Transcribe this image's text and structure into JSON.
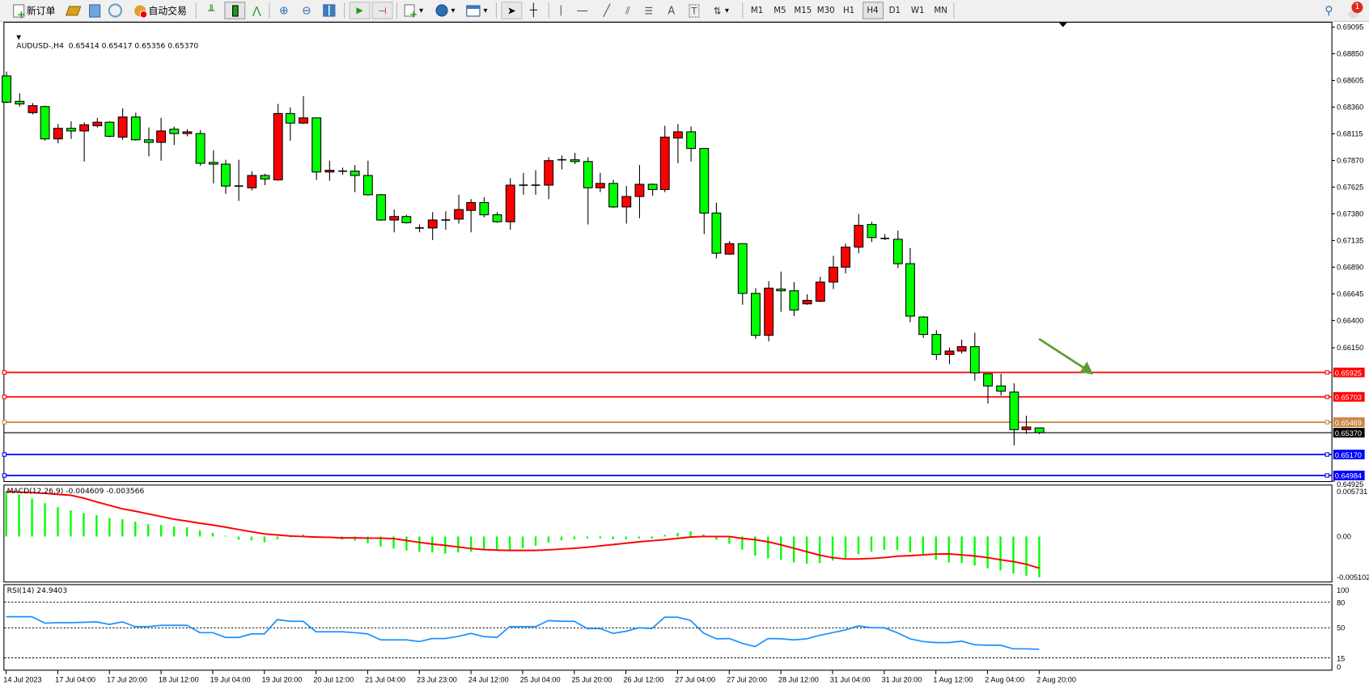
{
  "toolbar": {
    "new_order": "新订单",
    "auto_trading": "自动交易",
    "timeframes": [
      "M1",
      "M5",
      "M15",
      "M30",
      "H1",
      "H4",
      "D1",
      "W1",
      "MN"
    ],
    "active_timeframe": "H4",
    "notification_count": "1"
  },
  "chart": {
    "symbol_info": "AUDUSD-,H4  0.65414 0.65417 0.65356 0.65370",
    "price_axis": [
      "0.69095",
      "0.68850",
      "0.68605",
      "0.68360",
      "0.68115",
      "0.67870",
      "0.67625",
      "0.67380",
      "0.67135",
      "0.66890",
      "0.66645",
      "0.66400",
      "0.66150",
      "0.64925"
    ],
    "horizontal_lines": [
      {
        "price": 0.65925,
        "label": "0.65925",
        "color": "#ff0000"
      },
      {
        "price": 0.65703,
        "label": "0.65703",
        "color": "#ff0000"
      },
      {
        "price": 0.65469,
        "label": "0.65469",
        "color": "#cd853f"
      },
      {
        "price": 0.6517,
        "label": "0.65170",
        "color": "#0000ff"
      },
      {
        "price": 0.64984,
        "label": "0.64984",
        "color": "#0000ff"
      }
    ],
    "current_price": {
      "price": 0.6537,
      "label": "0.65370",
      "color": "#000000"
    },
    "arrow_color": "#5a9e32",
    "colors": {
      "bull": "#ff0000",
      "bear": "#00ff00",
      "outline": "#000000"
    }
  },
  "macd": {
    "info": "MACD(12,26,9) -0.004609 -0.003566",
    "axis": [
      {
        "value": 0.005731,
        "label": "0.005731"
      },
      {
        "value": 0,
        "label": "0.00"
      },
      {
        "value": -0.005102,
        "label": "-0.005102"
      }
    ],
    "colors": {
      "histogram": "#00ff00",
      "signal": "#ff0000"
    }
  },
  "rsi": {
    "info": "RSI(14) 24.9403",
    "axis": [
      "100",
      "80",
      "50",
      "15",
      "0"
    ],
    "levels": [
      80,
      50,
      15
    ],
    "color": "#1e90ff"
  },
  "time_axis": [
    "14 Jul 2023",
    "17 Jul 04:00",
    "17 Jul 20:00",
    "18 Jul 12:00",
    "19 Jul 04:00",
    "19 Jul 20:00",
    "20 Jul 12:00",
    "21 Jul 04:00",
    "23 Jul 23:00",
    "24 Jul 12:00",
    "25 Jul 04:00",
    "25 Jul 20:00",
    "26 Jul 12:00",
    "27 Jul 04:00",
    "27 Jul 20:00",
    "28 Jul 12:00",
    "31 Jul 04:00",
    "31 Jul 20:00",
    "1 Aug 12:00",
    "2 Aug 04:00",
    "2 Aug 20:00"
  ],
  "chart_data": [
    {
      "type": "candlestick",
      "symbol": "AUDUSD-",
      "timeframe": "H4",
      "ylim": [
        0.64925,
        0.69095
      ],
      "ohlc": [
        [
          0.68646,
          0.68686,
          0.68397,
          0.68405
        ],
        [
          0.68413,
          0.68486,
          0.68365,
          0.68389
        ],
        [
          0.68309,
          0.68397,
          0.68293,
          0.68373
        ],
        [
          0.68365,
          0.68373,
          0.68052,
          0.68068
        ],
        [
          0.68068,
          0.68205,
          0.68028,
          0.68165
        ],
        [
          0.68165,
          0.68229,
          0.68068,
          0.68141
        ],
        [
          0.68141,
          0.68221,
          0.6786,
          0.68197
        ],
        [
          0.68189,
          0.68261,
          0.68173,
          0.68221
        ],
        [
          0.68221,
          0.68229,
          0.68084,
          0.68092
        ],
        [
          0.68084,
          0.68349,
          0.6806,
          0.68269
        ],
        [
          0.68269,
          0.68309,
          0.68052,
          0.6806
        ],
        [
          0.6806,
          0.68173,
          0.67908,
          0.68036
        ],
        [
          0.68036,
          0.68261,
          0.67868,
          0.68141
        ],
        [
          0.68157,
          0.68181,
          0.68012,
          0.68117
        ],
        [
          0.68117,
          0.68157,
          0.68092,
          0.68133
        ],
        [
          0.68117,
          0.68149,
          0.6782,
          0.67844
        ],
        [
          0.67852,
          0.67964,
          0.67659,
          0.67836
        ],
        [
          0.67836,
          0.67876,
          0.67563,
          0.67635
        ],
        [
          0.67635,
          0.67876,
          0.67499,
          0.67635
        ],
        [
          0.67619,
          0.67772,
          0.67595,
          0.67732
        ],
        [
          0.67732,
          0.67748,
          0.67643,
          0.677
        ],
        [
          0.67692,
          0.68389,
          0.67684,
          0.68301
        ],
        [
          0.68301,
          0.68357,
          0.68052,
          0.68213
        ],
        [
          0.68213,
          0.68461,
          0.68205,
          0.68261
        ],
        [
          0.68261,
          0.68261,
          0.67692,
          0.67764
        ],
        [
          0.67764,
          0.67868,
          0.67684,
          0.6778
        ],
        [
          0.67772,
          0.67804,
          0.6774,
          0.67772
        ],
        [
          0.67772,
          0.67828,
          0.67579,
          0.67732
        ],
        [
          0.67732,
          0.67868,
          0.67547,
          0.67555
        ],
        [
          0.67555,
          0.67563,
          0.67315,
          0.67323
        ],
        [
          0.67323,
          0.67419,
          0.6721,
          0.67355
        ],
        [
          0.67355,
          0.67371,
          0.6729,
          0.67298
        ],
        [
          0.6725,
          0.67282,
          0.6721,
          0.6725
        ],
        [
          0.6725,
          0.67395,
          0.67138,
          0.67323
        ],
        [
          0.67323,
          0.67403,
          0.67234,
          0.67323
        ],
        [
          0.67331,
          0.67555,
          0.6729,
          0.67419
        ],
        [
          0.67411,
          0.67515,
          0.6721,
          0.67483
        ],
        [
          0.67483,
          0.67531,
          0.67347,
          0.67371
        ],
        [
          0.67371,
          0.67395,
          0.67298,
          0.67307
        ],
        [
          0.67307,
          0.67708,
          0.67234,
          0.67643
        ],
        [
          0.67643,
          0.67756,
          0.67555,
          0.67643
        ],
        [
          0.67643,
          0.6778,
          0.67555,
          0.67643
        ],
        [
          0.67643,
          0.679,
          0.67515,
          0.67868
        ],
        [
          0.67876,
          0.67916,
          0.67788,
          0.67876
        ],
        [
          0.67876,
          0.6794,
          0.67836,
          0.6786
        ],
        [
          0.6786,
          0.679,
          0.67282,
          0.67619
        ],
        [
          0.67619,
          0.67756,
          0.67579,
          0.67659
        ],
        [
          0.67659,
          0.67692,
          0.67435,
          0.67443
        ],
        [
          0.67443,
          0.67635,
          0.6729,
          0.67539
        ],
        [
          0.67539,
          0.67828,
          0.67339,
          0.67651
        ],
        [
          0.67651,
          0.67659,
          0.67547,
          0.67603
        ],
        [
          0.67603,
          0.68189,
          0.67579,
          0.68084
        ],
        [
          0.68076,
          0.68205,
          0.67844,
          0.68133
        ],
        [
          0.68133,
          0.68181,
          0.6786,
          0.6798
        ],
        [
          0.6798,
          0.6798,
          0.67194,
          0.67387
        ],
        [
          0.67387,
          0.67483,
          0.6697,
          0.67018
        ],
        [
          0.6701,
          0.6713,
          0.67002,
          0.67106
        ],
        [
          0.67106,
          0.67106,
          0.66545,
          0.66649
        ],
        [
          0.66649,
          0.66697,
          0.66232,
          0.66264
        ],
        [
          0.66264,
          0.66761,
          0.66208,
          0.66697
        ],
        [
          0.66689,
          0.66849,
          0.6648,
          0.66673
        ],
        [
          0.66673,
          0.66753,
          0.6644,
          0.66497
        ],
        [
          0.66553,
          0.66641,
          0.66545,
          0.66585
        ],
        [
          0.66577,
          0.66801,
          0.66569,
          0.66753
        ],
        [
          0.66753,
          0.66994,
          0.66689,
          0.6689
        ],
        [
          0.6689,
          0.67106,
          0.66833,
          0.67074
        ],
        [
          0.67074,
          0.67379,
          0.67018,
          0.67274
        ],
        [
          0.67282,
          0.67307,
          0.67122,
          0.67162
        ],
        [
          0.67154,
          0.67194,
          0.67138,
          0.67154
        ],
        [
          0.67146,
          0.67226,
          0.66882,
          0.66922
        ],
        [
          0.66922,
          0.67066,
          0.66384,
          0.6644
        ],
        [
          0.66432,
          0.6644,
          0.6624,
          0.66272
        ],
        [
          0.66272,
          0.66312,
          0.66039,
          0.66088
        ],
        [
          0.66088,
          0.66152,
          0.65999,
          0.6612
        ],
        [
          0.6612,
          0.66224,
          0.66096,
          0.6616
        ],
        [
          0.6616,
          0.66288,
          0.65847,
          0.65919
        ],
        [
          0.65911,
          0.65911,
          0.65638,
          0.65799
        ],
        [
          0.65799,
          0.65911,
          0.65711,
          0.65751
        ],
        [
          0.65743,
          0.65823,
          0.65253,
          0.65398
        ],
        [
          0.65398,
          0.65526,
          0.65358,
          0.65422
        ],
        [
          0.65414,
          0.65417,
          0.65356,
          0.6537
        ]
      ]
    },
    {
      "type": "bar",
      "indicator": "MACD(12,26,9)",
      "ylim": [
        -0.0052,
        0.00578
      ],
      "histogram": [
        0.00508,
        0.00477,
        0.00432,
        0.00378,
        0.00332,
        0.00296,
        0.00266,
        0.00242,
        0.00211,
        0.00196,
        0.00169,
        0.00139,
        0.0013,
        0.00115,
        0.00103,
        0.00069,
        0.00042,
        9e-05,
        -0.00036,
        -0.00045,
        -0.00066,
        -0.0003,
        0.0,
        0.00024,
        2e-05,
        1e-05,
        -0.00036,
        -0.00045,
        -0.00076,
        -0.00112,
        -0.00136,
        -0.00157,
        -0.00172,
        -0.00181,
        -0.00193,
        -0.00181,
        -0.00172,
        -0.00157,
        -0.00157,
        -0.00151,
        -0.00133,
        -0.00103,
        -0.00066,
        -0.00042,
        -0.0003,
        -0.00021,
        -0.00021,
        -0.0003,
        -0.0003,
        -0.00021,
        -0.00021,
        0.00018,
        0.00042,
        0.0006,
        0.00024,
        -0.00036,
        -0.00082,
        -0.00148,
        -0.00217,
        -0.00248,
        -0.00263,
        -0.00293,
        -0.00308,
        -0.00302,
        -0.00272,
        -0.00242,
        -0.00202,
        -0.00172,
        -0.00151,
        -0.00151,
        -0.00181,
        -0.00217,
        -0.00263,
        -0.00293,
        -0.00302,
        -0.00329,
        -0.00362,
        -0.00384,
        -0.0042,
        -0.00444,
        -0.004609
      ],
      "signal": [
        0.00507,
        0.00504,
        0.00498,
        0.00489,
        0.00477,
        0.00468,
        0.00435,
        0.00393,
        0.00353,
        0.00314,
        0.00287,
        0.00257,
        0.00227,
        0.00196,
        0.00175,
        0.00151,
        0.0013,
        0.00106,
        0.00079,
        0.00054,
        0.0003,
        0.00018,
        6e-05,
        0.0,
        -6e-05,
        -9e-05,
        -0.00015,
        -0.00015,
        -0.00018,
        -0.00018,
        -0.00024,
        -0.00045,
        -0.00066,
        -0.00085,
        -0.001,
        -0.00118,
        -0.00136,
        -0.00148,
        -0.00154,
        -0.00157,
        -0.00157,
        -0.00157,
        -0.00151,
        -0.00142,
        -0.00133,
        -0.00121,
        -0.00106,
        -0.00091,
        -0.00076,
        -0.0006,
        -0.00048,
        -0.00036,
        -0.00021,
        -6e-05,
        0.0,
        0.0,
        0.0,
        -0.00021,
        -0.00036,
        -0.0006,
        -0.00094,
        -0.00133,
        -0.00172,
        -0.00211,
        -0.00239,
        -0.00254,
        -0.00254,
        -0.00248,
        -0.00239,
        -0.00223,
        -0.00217,
        -0.00208,
        -0.00199,
        -0.00196,
        -0.00208,
        -0.0022,
        -0.00239,
        -0.00263,
        -0.00284,
        -0.00314,
        -0.003566
      ]
    },
    {
      "type": "line",
      "indicator": "RSI(14)",
      "ylim": [
        0,
        100
      ],
      "values": [
        63,
        63,
        63,
        55.5,
        56,
        56,
        56.5,
        57,
        54,
        57,
        51.4,
        51.4,
        53,
        53,
        53,
        44.4,
        44.4,
        38.8,
        38.8,
        42.9,
        42.9,
        59.6,
        57.7,
        57.7,
        45.4,
        45.4,
        45.4,
        44.4,
        42.9,
        35.9,
        35.9,
        35.9,
        34,
        37.5,
        37.5,
        40,
        43.5,
        39.8,
        38.8,
        51.4,
        51.4,
        51.4,
        58.5,
        57.7,
        57.7,
        49.2,
        49.2,
        43.5,
        46,
        50.1,
        49.2,
        62.4,
        62.4,
        58.7,
        44,
        37.2,
        37.5,
        32,
        28.1,
        37.5,
        37.2,
        35.9,
        37.2,
        41.3,
        44.4,
        47.6,
        52.3,
        50.1,
        50.1,
        44.4,
        37.2,
        34,
        32.8,
        32.8,
        34.4,
        30.3,
        29.7,
        29.7,
        25.5,
        25.5,
        24.94
      ]
    }
  ]
}
